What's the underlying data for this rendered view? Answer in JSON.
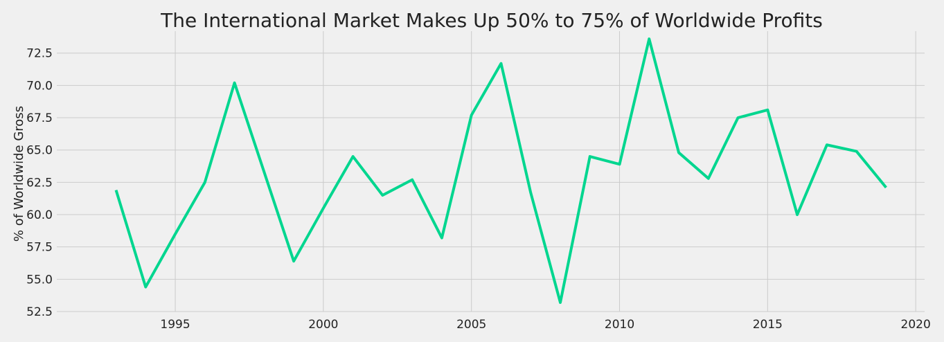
{
  "chart_data": {
    "type": "line",
    "title": "The International Market Makes Up 50% to 75% of Worldwide Profits",
    "xlabel": "",
    "ylabel": "% of Worldwide Gross",
    "xlim": [
      1991.0,
      2020.3
    ],
    "ylim": [
      52.5,
      74.2
    ],
    "x_ticks": [
      1995,
      2000,
      2005,
      2010,
      2015,
      2020
    ],
    "y_ticks": [
      52.5,
      55.0,
      57.5,
      60.0,
      62.5,
      65.0,
      67.5,
      70.0,
      72.5
    ],
    "grid": true,
    "line_color": "#00d68f",
    "background_color": "#f0f0f0",
    "grid_color": "#cbcbcb",
    "series": [
      {
        "x": [
          1993,
          1994,
          1995,
          1996,
          1997,
          1998,
          1999,
          2000,
          2001,
          2002,
          2003,
          2004,
          2005,
          2006,
          2007,
          2008,
          2009,
          2010,
          2011,
          2012,
          2013,
          2014,
          2015,
          2016,
          2017,
          2018,
          2019
        ],
        "values": [
          61.9,
          54.4,
          58.5,
          62.5,
          70.2,
          63.3,
          56.4,
          60.5,
          64.5,
          61.5,
          62.7,
          58.2,
          67.7,
          71.7,
          61.7,
          53.2,
          64.5,
          63.9,
          73.6,
          64.8,
          62.8,
          67.5,
          68.1,
          60.0,
          65.4,
          64.9,
          62.1
        ]
      }
    ]
  }
}
